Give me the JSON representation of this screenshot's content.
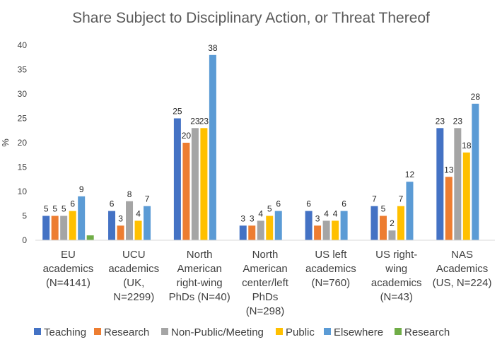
{
  "chart_data": {
    "type": "bar",
    "title": "Share Subject to Disciplinary Action, or Threat Thereof",
    "ylabel": "%",
    "xlabel": "",
    "ylim": [
      0,
      40
    ],
    "yticks": [
      0,
      5,
      10,
      15,
      20,
      25,
      30,
      35,
      40
    ],
    "grid": false,
    "legend_position": "bottom",
    "categories": [
      [
        "EU",
        "academics",
        "(N=4141)"
      ],
      [
        "UCU",
        "academics",
        "(UK,",
        "N=2299)"
      ],
      [
        "North",
        "American",
        "right-wing",
        "PhDs (N=40)"
      ],
      [
        "North",
        "American",
        "center/left",
        "PhDs",
        "(N=298)"
      ],
      [
        "US left",
        "academics",
        "(N=760)"
      ],
      [
        "US right-",
        "wing",
        "academics",
        "(N=43)"
      ],
      [
        "NAS",
        "Academics",
        "(US, N=224)"
      ]
    ],
    "series": [
      {
        "name": "Teaching",
        "color": "#4472C4",
        "values": [
          5,
          6,
          25,
          3,
          6,
          7,
          23
        ]
      },
      {
        "name": "Research",
        "color": "#ED7D31",
        "values": [
          5,
          3,
          20,
          3,
          3,
          5,
          13
        ]
      },
      {
        "name": "Non-Public/Meeting",
        "color": "#A5A5A5",
        "values": [
          5,
          8,
          23,
          4,
          4,
          2,
          23
        ]
      },
      {
        "name": "Public",
        "color": "#FFC000",
        "values": [
          6,
          4,
          23,
          5,
          4,
          7,
          18
        ]
      },
      {
        "name": "Elsewhere",
        "color": "#5B9BD5",
        "values": [
          9,
          7,
          38,
          6,
          6,
          12,
          28
        ]
      },
      {
        "name": "Research",
        "color": "#70AD47",
        "values": [
          1,
          null,
          null,
          null,
          null,
          null,
          null
        ]
      }
    ],
    "data_labels": [
      [
        true,
        true,
        true,
        true,
        true
      ],
      [
        true,
        true,
        true,
        true,
        true
      ],
      [
        true,
        true,
        true,
        true,
        true
      ],
      [
        true,
        true,
        true,
        true,
        true
      ],
      [
        true,
        true,
        true,
        true,
        true
      ],
      [
        true,
        true,
        true,
        true,
        true
      ],
      [
        true,
        true,
        true,
        true,
        true
      ]
    ]
  }
}
